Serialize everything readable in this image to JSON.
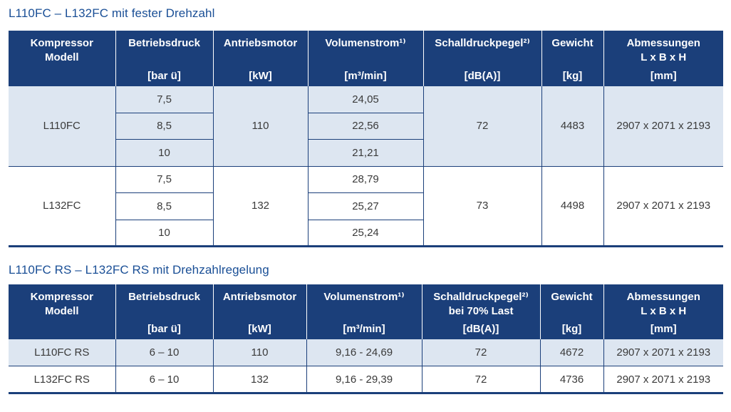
{
  "section1": {
    "title": "L110FC – L132FC mit fester Drehzahl",
    "headers": [
      {
        "top": "Kompressor\nModell",
        "unit": ""
      },
      {
        "top": "Betriebsdruck",
        "unit": "[bar ü]"
      },
      {
        "top": "Antriebsmotor",
        "unit": "[kW]"
      },
      {
        "top": "Volumenstrom¹⁾",
        "unit": "[m³/min]"
      },
      {
        "top": "Schalldruckpegel²⁾",
        "unit": "[dB(A)]"
      },
      {
        "top": "Gewicht",
        "unit": "[kg]"
      },
      {
        "top": "Abmessungen\nL x B x H",
        "unit": "[mm]"
      }
    ],
    "models": [
      {
        "name": "L110FC",
        "pressures": [
          "7,5",
          "8,5",
          "10"
        ],
        "motor": "110",
        "flows": [
          "24,05",
          "22,56",
          "21,21"
        ],
        "noise": "72",
        "weight": "4483",
        "dimensions": "2907 x 2071 x 2193"
      },
      {
        "name": "L132FC",
        "pressures": [
          "7,5",
          "8,5",
          "10"
        ],
        "motor": "132",
        "flows": [
          "28,79",
          "25,27",
          "25,24"
        ],
        "noise": "73",
        "weight": "4498",
        "dimensions": "2907 x 2071 x 2193"
      }
    ]
  },
  "section2": {
    "title": "L110FC RS – L132FC RS mit Drehzahlregelung",
    "headers": [
      {
        "top": "Kompressor\nModell",
        "unit": ""
      },
      {
        "top": "Betriebsdruck",
        "unit": "[bar ü]"
      },
      {
        "top": "Antriebsmotor",
        "unit": "[kW]"
      },
      {
        "top": "Volumenstrom¹⁾",
        "unit": "[m³/min]"
      },
      {
        "top": "Schalldruckpegel²⁾\nbei 70% Last",
        "unit": "[dB(A)]"
      },
      {
        "top": "Gewicht",
        "unit": "[kg]"
      },
      {
        "top": "Abmessungen\nL x B x H",
        "unit": "[mm]"
      }
    ],
    "rows": [
      {
        "name": "L110FC RS",
        "pressure": "6 – 10",
        "motor": "110",
        "flow": "9,16 - 24,69",
        "noise": "72",
        "weight": "4672",
        "dimensions": "2907 x 2071 x 2193"
      },
      {
        "name": "L132FC RS",
        "pressure": "6 – 10",
        "motor": "132",
        "flow": "9,16 - 29,39",
        "noise": "72",
        "weight": "4736",
        "dimensions": "2907 x 2071 x 2193"
      }
    ]
  }
}
